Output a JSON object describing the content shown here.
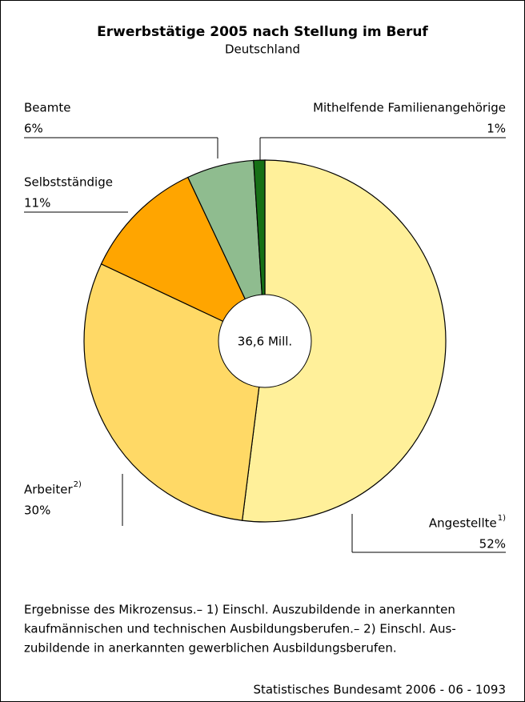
{
  "chart_data": {
    "type": "donut",
    "title": "Erwerbstätige 2005 nach Stellung im Beruf",
    "subtitle": "Deutschland",
    "center_label": "36,6 Mill.",
    "categories": [
      "Angestellte",
      "Arbeiter",
      "Selbstständige",
      "Beamte",
      "Mithelfende Familienangehörige"
    ],
    "notes": [
      "1)",
      "2)",
      null,
      null,
      null
    ],
    "values": [
      52,
      30,
      11,
      6,
      1
    ],
    "value_labels": [
      "52%",
      "30%",
      "11%",
      "6%",
      "1%"
    ],
    "colors": [
      "#fff09a",
      "#ffd966",
      "#ffa500",
      "#8fbc8f",
      "#167016"
    ],
    "footnote": [
      "Ergebnisse des Mikrozensus.– 1) Einschl. Auszubildende in anerkannten",
      "kaufmännischen und technischen Ausbildungsberufen.– 2) Einschl. Aus-",
      "zubildende in anerkannten gewerblichen Ausbildungsberufen."
    ],
    "source": "Statistisches Bundesamt 2006 - 06 - 1093"
  }
}
